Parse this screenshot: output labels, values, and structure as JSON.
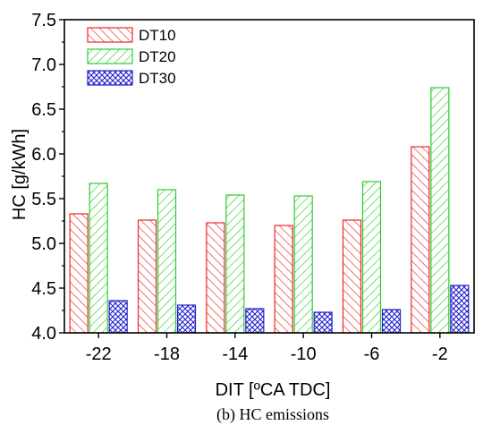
{
  "chart_data": {
    "type": "bar",
    "title": "",
    "xlabel": "DIT [ºCA TDC]",
    "ylabel": "HC [g/kWh]",
    "caption": "(b) HC emissions",
    "categories": [
      "-22",
      "-18",
      "-14",
      "-10",
      "-6",
      "-2"
    ],
    "ylim": [
      4.0,
      7.5
    ],
    "yticks": [
      "4.0",
      "4.5",
      "5.0",
      "5.5",
      "6.0",
      "6.5",
      "7.0",
      "7.5"
    ],
    "legend_position": "top-left",
    "grid": false,
    "series": [
      {
        "name": "DT10",
        "color": "#e8282a",
        "pattern": "diagonal-hatch",
        "values": [
          5.33,
          5.26,
          5.23,
          5.2,
          5.26,
          6.08
        ]
      },
      {
        "name": "DT20",
        "color": "#2ecc2e",
        "pattern": "reverse-diagonal-hatch",
        "values": [
          5.67,
          5.6,
          5.54,
          5.53,
          5.69,
          6.74
        ]
      },
      {
        "name": "DT30",
        "color": "#2222cc",
        "pattern": "cross-hatch",
        "values": [
          4.36,
          4.31,
          4.27,
          4.23,
          4.26,
          4.53
        ]
      }
    ]
  }
}
